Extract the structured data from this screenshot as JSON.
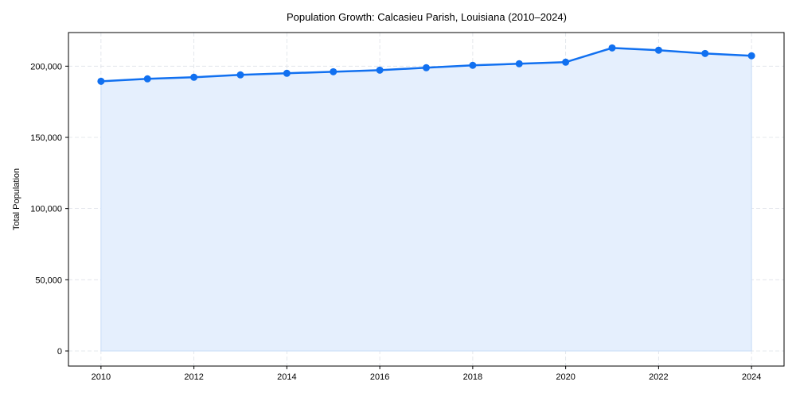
{
  "chart_data": {
    "type": "area",
    "title": "Population Growth: Calcasieu Parish, Louisiana (2010–2024)",
    "xlabel": "",
    "ylabel": "Total Population",
    "x": [
      2010,
      2011,
      2012,
      2013,
      2014,
      2015,
      2016,
      2017,
      2018,
      2019,
      2020,
      2021,
      2022,
      2023,
      2024
    ],
    "series": [
      {
        "name": "Total Population",
        "values": [
          189400,
          191100,
          192200,
          193900,
          195000,
          196100,
          197200,
          198900,
          200600,
          201700,
          202800,
          212800,
          211200,
          208900,
          207300
        ]
      }
    ],
    "xticks": [
      "2010",
      "2012",
      "2014",
      "2016",
      "2018",
      "2020",
      "2022",
      "2024"
    ],
    "yticks": [
      {
        "value": 0,
        "label": "0"
      },
      {
        "value": 50000,
        "label": "50,000"
      },
      {
        "value": 100000,
        "label": "100,000"
      },
      {
        "value": 150000,
        "label": "150,000"
      },
      {
        "value": 200000,
        "label": "200,000"
      }
    ],
    "xlim": [
      2009.3,
      2024.7
    ],
    "ylim": [
      -10600,
      223600
    ],
    "grid": true,
    "colors": {
      "line": "#1170f0",
      "fill": "#e5effd",
      "grid": "#dde1e8"
    }
  }
}
